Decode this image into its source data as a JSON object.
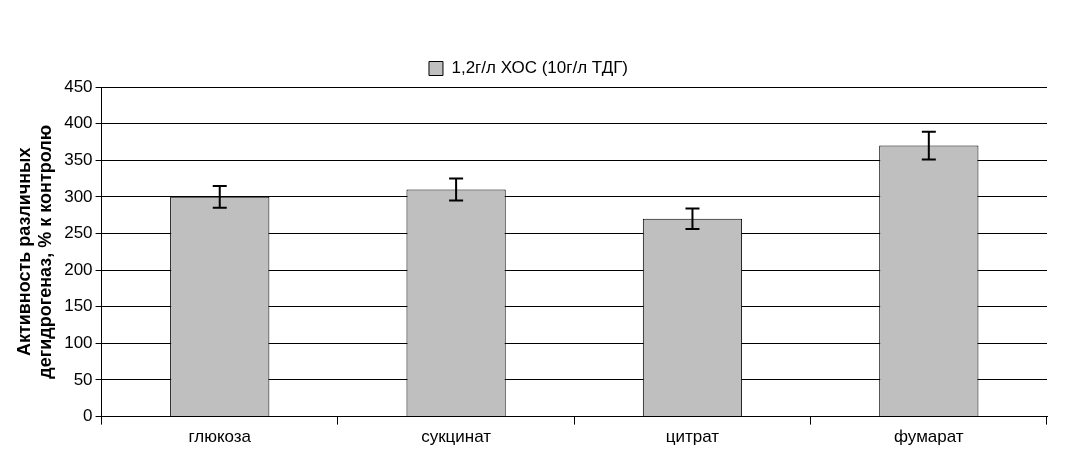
{
  "chart_data": {
    "type": "bar",
    "ylabel": "Активность различных\nдегидрогеназ, % к контролю",
    "categories": [
      "глюкоза",
      "сукцинат",
      "цитрат",
      "фумарат"
    ],
    "series": [
      {
        "name": "1,2г/л ХОС (10г/л ТДГ)",
        "color": "#bfbfbf",
        "values": [
          300,
          310,
          270,
          370
        ],
        "errors": [
          15,
          15,
          14,
          19
        ]
      }
    ],
    "ylim": [
      0,
      450
    ],
    "yticks": [
      0,
      50,
      100,
      150,
      200,
      250,
      300,
      350,
      400,
      450
    ],
    "grid": "y",
    "legend": "top"
  }
}
